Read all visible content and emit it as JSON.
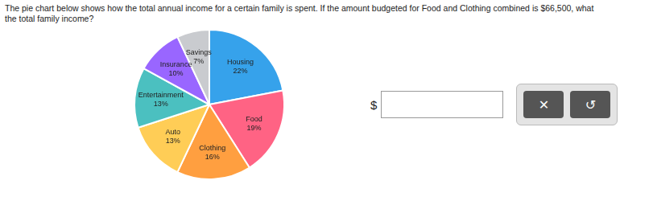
{
  "chart_data": {
    "type": "pie",
    "categories": [
      "Housing",
      "Food",
      "Clothing",
      "Auto",
      "Entertainment",
      "Insurance",
      "Savings"
    ],
    "values": [
      22,
      19,
      16,
      13,
      13,
      10,
      7
    ],
    "value_labels": [
      "22%",
      "19%",
      "16%",
      "13%",
      "13%",
      "10%",
      "7%"
    ],
    "data_labels": true,
    "legend": false,
    "annotations": [
      "The pie chart below shows how the total annual income for a certain family is spent. If the amount budgeted for Food and Clothing combined is $66,500, what",
      "the total family income?",
      "$",
      "✕",
      "↺"
    ]
  }
}
